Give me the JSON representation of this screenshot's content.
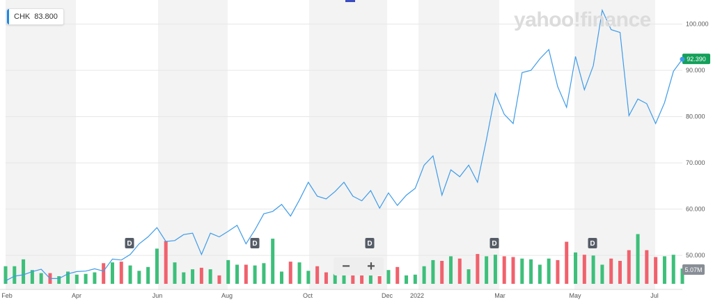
{
  "legend": {
    "symbol": "CHK",
    "value": "83.800"
  },
  "logo": "yahoo!finance",
  "current_price_label": "92.390",
  "volume_label": "5.07M",
  "zoom": {
    "minus": "−",
    "plus": "+"
  },
  "colors": {
    "line": "#3d9be9",
    "up": "#3dbf7a",
    "down": "#f0616c",
    "price_tag": "#14a05a",
    "dividend": "#555c66"
  },
  "chart_data": {
    "type": "line",
    "title": "",
    "xlabel": "",
    "ylabel": "",
    "ylim": [
      44,
      104
    ],
    "y_ticks": [
      "100.000",
      "90.000",
      "80.000",
      "70.000",
      "60.000",
      "50.000"
    ],
    "x_ticks": [
      "Feb",
      "Apr",
      "Jun",
      "Aug",
      "Oct",
      "Dec",
      "2022",
      "Mar",
      "May",
      "Jul"
    ],
    "series": [
      {
        "values": [
          44.5,
          45.5,
          45.8,
          46.5,
          47.0,
          45.0,
          45.0,
          46.0,
          46.5,
          46.6,
          47.1,
          46.6,
          49.2,
          49.0,
          50.2,
          52.5,
          54.0,
          56.0,
          53.0,
          53.2,
          54.5,
          54.8,
          50.2,
          54.8,
          54.0,
          55.2,
          56.5,
          52.5,
          55.5,
          59.0,
          59.5,
          61.0,
          58.5,
          62.0,
          65.8,
          62.8,
          62.2,
          63.8,
          65.8,
          62.8,
          61.8,
          64.0,
          60.2,
          63.5,
          60.8,
          63.0,
          64.5,
          69.5,
          71.5,
          63.0,
          68.5,
          67.0,
          69.5,
          65.8,
          75.0,
          85.0,
          80.5,
          78.5,
          89.5,
          90.0,
          92.5,
          94.5,
          86.5,
          82.0,
          93.0,
          85.8,
          91.0,
          103.0,
          98.8,
          98.2,
          80.2,
          83.8,
          82.8,
          78.5,
          83.0,
          89.8,
          92.4
        ]
      },
      {
        "name": "Volume",
        "values": [
          2.3,
          2.3,
          3.2,
          1.8,
          1.4,
          1.4,
          1.0,
          1.6,
          1.2,
          1.3,
          1.5,
          2.7,
          2.8,
          2.9,
          2.4,
          1.7,
          2.2,
          4.6,
          5.6,
          2.8,
          1.5,
          1.9,
          2.1,
          1.9,
          1.1,
          3.1,
          2.5,
          2.5,
          2.4,
          2.7,
          5.9,
          1.6,
          2.9,
          2.8,
          1.7,
          2.3,
          1.5,
          1.3,
          2.2,
          1.1,
          1.4,
          1.1,
          1.0,
          1.8,
          2.2,
          1.1,
          1.2,
          2.3,
          3.1,
          3.0,
          3.6,
          3.3,
          1.9,
          3.9,
          3.6,
          3.8,
          3.6,
          3.5,
          3.3,
          3.2,
          2.5,
          3.3,
          3.1,
          5.5,
          4.1,
          3.8,
          3.7,
          2.5,
          3.3,
          3.0,
          4.4,
          6.5,
          4.4,
          3.5,
          3.6,
          3.8,
          2.0
        ]
      }
    ],
    "dividends": [
      "D",
      "D",
      "D",
      "D",
      "D"
    ],
    "grid": true
  }
}
